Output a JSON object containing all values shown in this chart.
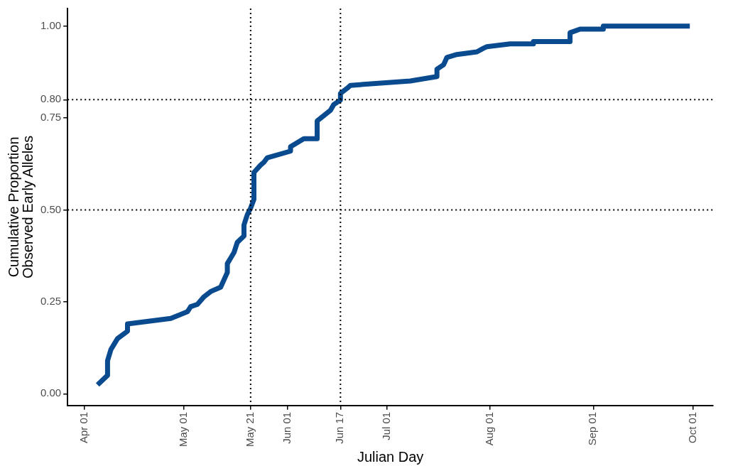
{
  "chart_data": {
    "type": "line",
    "xlabel": "Julian Day",
    "ylabel": "Cumulative Proportion\nObserved Early Alleles",
    "x": [
      "--04-05",
      "--04-08",
      "--04-08",
      "--04-09",
      "--04-11",
      "--04-14",
      "--04-14",
      "--04-27",
      "--05-02",
      "--05-03",
      "--05-05",
      "--05-07",
      "--05-09",
      "--05-12",
      "--05-13",
      "--05-14",
      "--05-14",
      "--05-16",
      "--05-17",
      "--05-19",
      "--05-19",
      "--05-20",
      "--05-21",
      "--05-22",
      "--05-22",
      "--05-24",
      "--05-25",
      "--05-26",
      "--06-02",
      "--06-02",
      "--06-06",
      "--06-10",
      "--06-10",
      "--06-14",
      "--06-15",
      "--06-17",
      "--06-17",
      "--06-19",
      "--06-20",
      "--07-08",
      "--07-16",
      "--07-16",
      "--07-18",
      "--07-19",
      "--07-22",
      "--07-28",
      "--07-30",
      "--07-31",
      "--08-07",
      "--08-14",
      "--08-14",
      "--08-25",
      "--08-25",
      "--08-28",
      "--09-04",
      "--09-04",
      "--09-30"
    ],
    "series": [
      {
        "color": "#0a4a8e",
        "values": [
          0.024,
          0.05,
          0.09,
          0.12,
          0.15,
          0.17,
          0.19,
          0.205,
          0.223,
          0.237,
          0.243,
          0.264,
          0.278,
          0.29,
          0.31,
          0.33,
          0.354,
          0.384,
          0.412,
          0.429,
          0.459,
          0.487,
          0.505,
          0.529,
          0.602,
          0.622,
          0.63,
          0.642,
          0.66,
          0.672,
          0.694,
          0.694,
          0.742,
          0.771,
          0.787,
          0.799,
          0.817,
          0.831,
          0.839,
          0.851,
          0.863,
          0.883,
          0.895,
          0.915,
          0.923,
          0.93,
          0.94,
          0.944,
          0.952,
          0.952,
          0.958,
          0.958,
          0.982,
          0.992,
          0.992,
          1.0,
          1.0
        ]
      }
    ],
    "xlim": [
      "--03-27",
      "--10-07"
    ],
    "xticks": [
      {
        "value": "--04-01",
        "label": "Apr 01"
      },
      {
        "value": "--05-01",
        "label": "May 01"
      },
      {
        "value": "--05-21",
        "label": "May 21"
      },
      {
        "value": "--06-01",
        "label": "Jun 01"
      },
      {
        "value": "--06-17",
        "label": "Jun 17"
      },
      {
        "value": "--07-01",
        "label": "Jul 01"
      },
      {
        "value": "--08-01",
        "label": "Aug 01"
      },
      {
        "value": "--09-01",
        "label": "Sep 01"
      },
      {
        "value": "--10-01",
        "label": "Oct 01"
      }
    ],
    "ylim": [
      -0.032,
      1.048
    ],
    "yticks": [
      {
        "value": 0,
        "label": "0.00"
      },
      {
        "value": 0.25,
        "label": "0.25"
      },
      {
        "value": 0.5,
        "label": "0.50"
      },
      {
        "value": 0.75,
        "label": "0.75"
      },
      {
        "value": 0.8,
        "label": "0.80"
      },
      {
        "value": 1,
        "label": "1.00"
      }
    ],
    "ref_lines": [
      {
        "axis": "x",
        "value": "--05-21",
        "line_style": "dotted",
        "color": "#000000"
      },
      {
        "axis": "x",
        "value": "--06-17",
        "line_style": "dotted",
        "color": "#000000"
      },
      {
        "axis": "y",
        "value": 0.5,
        "line_style": "dotted",
        "color": "#000000"
      },
      {
        "axis": "y",
        "value": 0.8,
        "line_style": "dotted",
        "color": "#000000"
      }
    ],
    "grid": false,
    "legend": false,
    "marker": "none",
    "line_style": "solid"
  }
}
